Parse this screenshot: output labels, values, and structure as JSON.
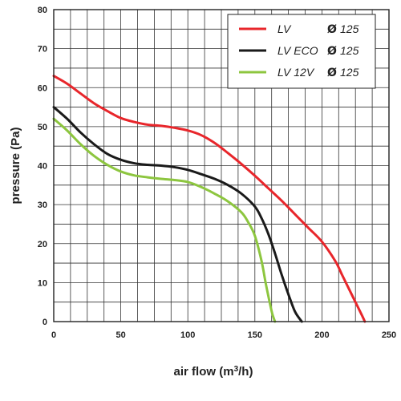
{
  "chart_data": {
    "type": "line",
    "xlabel_main": "air flow (m",
    "xlabel_sup": "3",
    "xlabel_end": "/h)",
    "ylabel": "pressure (Pa)",
    "xlim": [
      0,
      250
    ],
    "ylim": [
      0,
      80
    ],
    "xticks": [
      "0",
      "50",
      "100",
      "150",
      "200",
      "250"
    ],
    "yticks": [
      "0",
      "10",
      "20",
      "30",
      "40",
      "50",
      "60",
      "70",
      "80"
    ],
    "grid": true,
    "legend_position": "top-right",
    "series": [
      {
        "name": "LV",
        "diameter": "125",
        "color": "#e8262b",
        "x": [
          0,
          10,
          20,
          30,
          40,
          50,
          60,
          70,
          80,
          90,
          100,
          110,
          120,
          130,
          140,
          150,
          160,
          170,
          180,
          190,
          200,
          210,
          215,
          220,
          225,
          230,
          232
        ],
        "y": [
          63,
          61,
          58.5,
          56,
          54,
          52.2,
          51.2,
          50.5,
          50.2,
          49.7,
          49,
          47.8,
          45.8,
          43.2,
          40.4,
          37.4,
          34.2,
          31,
          27.5,
          24,
          20.5,
          15.5,
          12,
          8.5,
          5,
          1.5,
          0
        ]
      },
      {
        "name": "LV ECO",
        "diameter": "125",
        "color": "#1a1a1a",
        "x": [
          0,
          10,
          20,
          30,
          40,
          50,
          60,
          70,
          80,
          90,
          100,
          110,
          120,
          130,
          140,
          150,
          155,
          160,
          165,
          170,
          175,
          180,
          185
        ],
        "y": [
          55,
          52,
          48.5,
          45.5,
          43,
          41.5,
          40.6,
          40.2,
          40,
          39.6,
          38.9,
          37.8,
          36.6,
          35,
          32.8,
          29.5,
          26.5,
          22.5,
          17.5,
          12,
          7,
          2.5,
          0
        ]
      },
      {
        "name": "LV 12V",
        "diameter": "125",
        "color": "#8dc63f",
        "x": [
          0,
          10,
          20,
          30,
          40,
          50,
          60,
          70,
          80,
          90,
          100,
          110,
          120,
          130,
          140,
          145,
          150,
          155,
          158,
          161,
          163,
          165
        ],
        "y": [
          52,
          49,
          45.5,
          42.5,
          40.2,
          38.5,
          37.5,
          37,
          36.6,
          36.3,
          35.8,
          34.5,
          32.8,
          30.8,
          28,
          25.5,
          22,
          15.5,
          10,
          5,
          2,
          0
        ]
      }
    ]
  }
}
